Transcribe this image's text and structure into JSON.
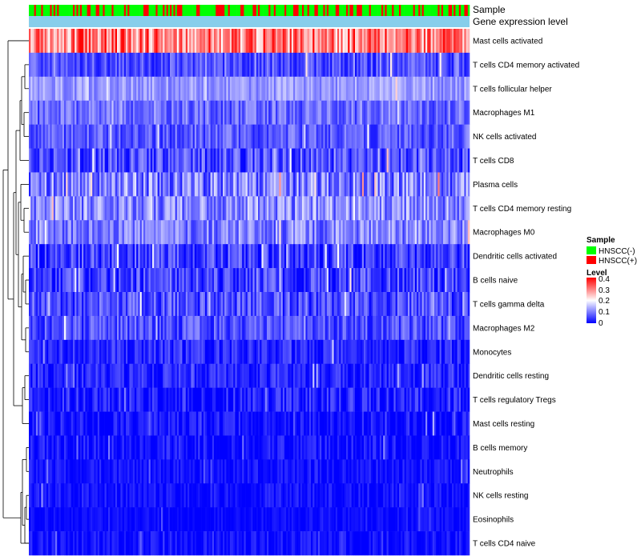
{
  "chart_data": {
    "type": "heatmap",
    "colors": {
      "negative": "#00ff00",
      "positive": "#ff0000",
      "gene_expression_bar": "#87ceeb",
      "low": "#0000ff",
      "mid": "#ffffff",
      "high": "#ff0000"
    },
    "annotation_labels": {
      "sample": "Sample",
      "expression": "Gene expression level"
    },
    "rows": [
      {
        "label": "Mast cells activated",
        "mean": 0.3,
        "spread": 0.1
      },
      {
        "label": "T cells CD4 memory activated",
        "mean": 0.06,
        "spread": 0.05
      },
      {
        "label": "T cells follicular helper",
        "mean": 0.12,
        "spread": 0.04
      },
      {
        "label": "Macrophages M1",
        "mean": 0.08,
        "spread": 0.05
      },
      {
        "label": "NK cells activated",
        "mean": 0.07,
        "spread": 0.05
      },
      {
        "label": "T cells CD8",
        "mean": 0.06,
        "spread": 0.06
      },
      {
        "label": "Plasma cells",
        "mean": 0.1,
        "spread": 0.08
      },
      {
        "label": "T cells CD4 memory resting",
        "mean": 0.11,
        "spread": 0.07
      },
      {
        "label": "Macrophages M0",
        "mean": 0.1,
        "spread": 0.06
      },
      {
        "label": "Dendritic cells activated",
        "mean": 0.05,
        "spread": 0.06
      },
      {
        "label": "B cells naive",
        "mean": 0.05,
        "spread": 0.06
      },
      {
        "label": "T cells gamma delta",
        "mean": 0.06,
        "spread": 0.06
      },
      {
        "label": "Macrophages M2",
        "mean": 0.06,
        "spread": 0.05
      },
      {
        "label": "Monocytes",
        "mean": 0.03,
        "spread": 0.04
      },
      {
        "label": "Dendritic cells resting",
        "mean": 0.03,
        "spread": 0.04
      },
      {
        "label": "T cells regulatory  Tregs",
        "mean": 0.02,
        "spread": 0.05
      },
      {
        "label": "Mast cells resting",
        "mean": 0.01,
        "spread": 0.04
      },
      {
        "label": "B cells memory",
        "mean": 0.01,
        "spread": 0.04
      },
      {
        "label": "Neutrophils",
        "mean": 0.01,
        "spread": 0.03
      },
      {
        "label": "NK cells resting",
        "mean": 0.01,
        "spread": 0.03
      },
      {
        "label": "Eosinophils",
        "mean": 0.005,
        "spread": 0.02
      },
      {
        "label": "T cells CD4 naive",
        "mean": 0.01,
        "spread": 0.03
      }
    ],
    "n_samples": 250,
    "positive_fraction": 0.25,
    "value_range": [
      0,
      0.4
    ],
    "legend": {
      "sample_title": "Sample",
      "sample_entries": [
        "HNSCC(-)",
        "HNSCC(+)"
      ],
      "level_title": "Level",
      "level_ticks": [
        "0.4",
        "0.3",
        "0.2",
        "0.1",
        "0"
      ]
    }
  }
}
